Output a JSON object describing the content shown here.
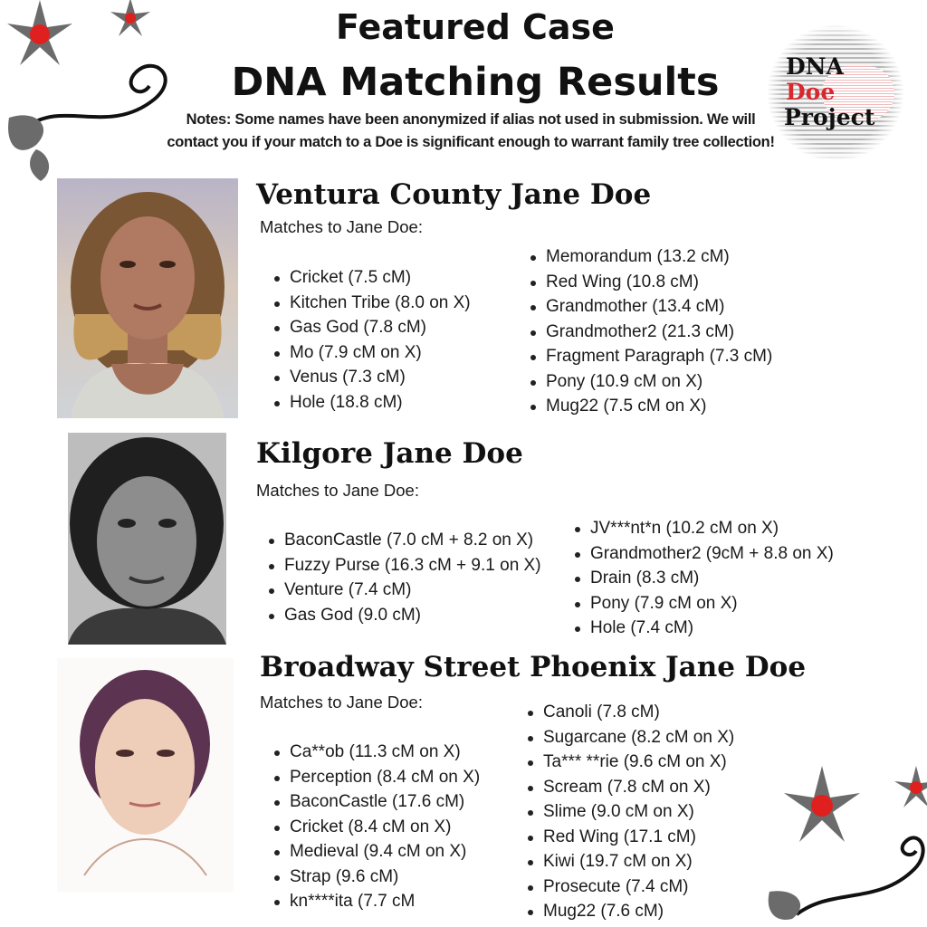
{
  "header": {
    "title_line1": "Featured Case",
    "title_line2": "DNA Matching Results",
    "notes": "Notes: Some names have been anonymized if alias not used in submission. We will contact you if your match to a Doe is significant enough to warrant family tree collection!"
  },
  "logo": {
    "line1": "DNA",
    "line2": "Doe",
    "line3": "Project",
    "accent": "#d9272e"
  },
  "colors": {
    "flower_petal": "#6b6b6b",
    "flower_center": "#e0201f",
    "text": "#1a1a1a"
  },
  "cases": [
    {
      "name": "Ventura County Jane Doe",
      "matches_label": "Matches to Jane Doe:",
      "left": [
        "Cricket (7.5 cM)",
        "Kitchen Tribe (8.0 on X)",
        "Gas God (7.8 cM)",
        "Mo (7.9 cM on X)",
        "Venus (7.3 cM)",
        "Hole (18.8 cM)"
      ],
      "right": [
        "Memorandum (13.2 cM)",
        "Red Wing (10.8 cM)",
        "Grandmother (13.4 cM)",
        "Grandmother2 (21.3 cM)",
        "Fragment Paragraph (7.3 cM)",
        "Pony (10.9 cM on X)",
        "Mug22 (7.5 cM on X)"
      ]
    },
    {
      "name": "Kilgore Jane Doe",
      "matches_label": "Matches to Jane Doe:",
      "left": [
        "BaconCastle (7.0 cM + 8.2 on X)",
        "Fuzzy Purse (16.3 cM + 9.1 on X)",
        "Venture (7.4 cM)",
        "Gas God (9.0 cM)"
      ],
      "right": [
        "JV***nt*n (10.2 cM on X)",
        "Grandmother2 (9cM + 8.8 on X)",
        "Drain (8.3 cM)",
        "Pony (7.9 cM on X)",
        "Hole (7.4 cM)"
      ]
    },
    {
      "name": "Broadway Street Phoenix Jane Doe",
      "matches_label": "Matches to Jane Doe:",
      "left": [
        "Ca**ob (11.3 cM on X)",
        "Perception (8.4 cM on X)",
        "BaconCastle (17.6 cM)",
        "Cricket (8.4 cM on X)",
        "Medieval (9.4 cM on X)",
        "Strap (9.6 cM)",
        "kn****ita (7.7 cM"
      ],
      "right": [
        "Canoli (7.8 cM)",
        "Sugarcane (8.2 cM on X)",
        "Ta*** **rie (9.6 cM on X)",
        "Scream (7.8 cM on X)",
        "Slime (9.0 cM on X)",
        "Red Wing (17.1 cM)",
        "Kiwi (19.7 cM on X)",
        "Prosecute (7.4 cM)",
        "Mug22 (7.6 cM)"
      ]
    }
  ]
}
